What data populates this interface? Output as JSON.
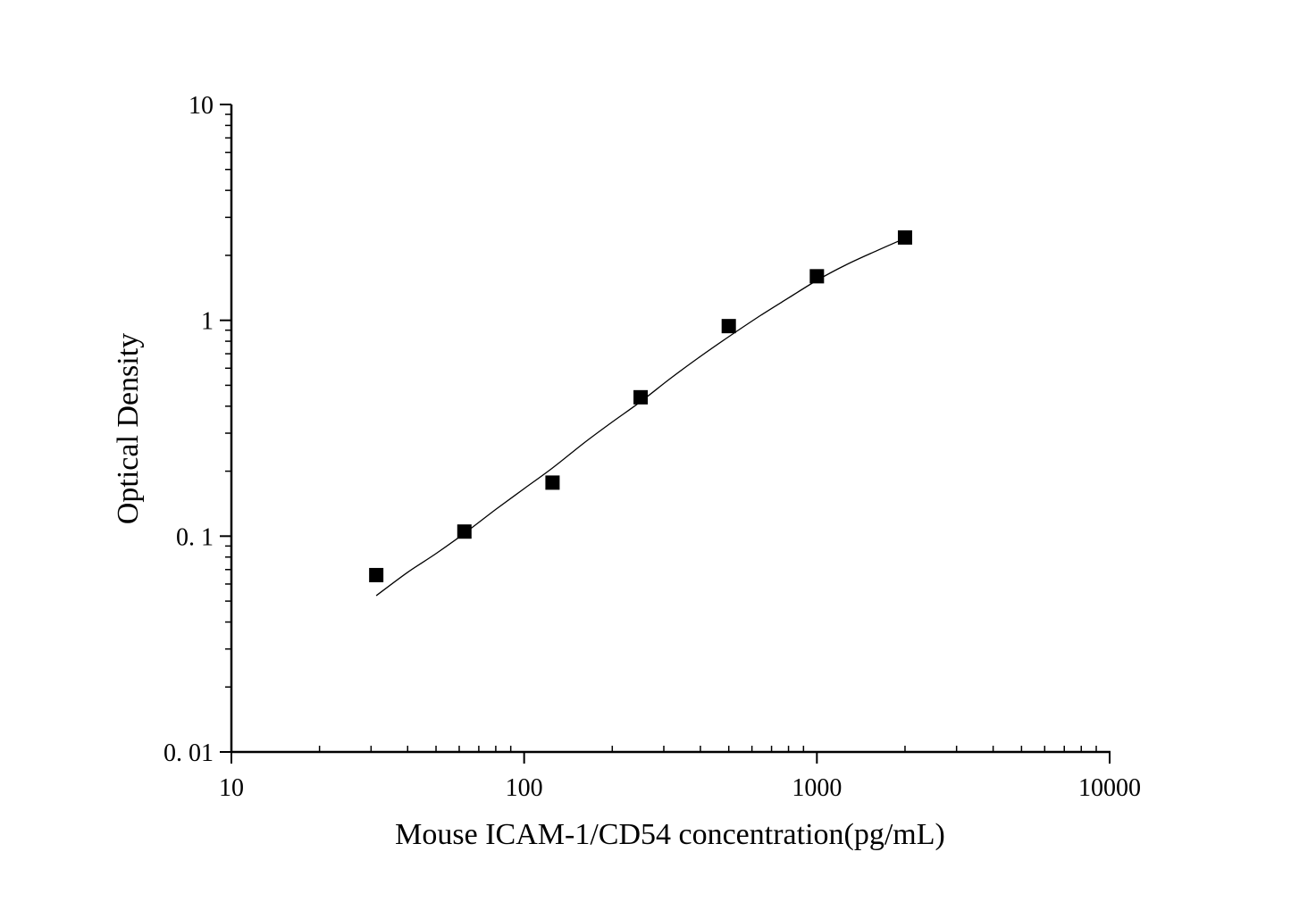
{
  "chart_data": {
    "type": "scatter",
    "title": "",
    "xlabel": "Mouse ICAM-1/CD54  concentration(pg/mL)",
    "ylabel": "Optical Density",
    "xscale": "log",
    "yscale": "log",
    "xlim": [
      10,
      10000
    ],
    "ylim": [
      0.01,
      10
    ],
    "x_ticks": [
      10,
      100,
      1000,
      10000
    ],
    "x_tick_labels": [
      "10",
      "100",
      "1000",
      "10000"
    ],
    "y_ticks": [
      0.01,
      0.1,
      1,
      10
    ],
    "y_tick_labels": [
      "0. 01",
      "0. 1",
      "1",
      "10"
    ],
    "grid": false,
    "legend": "none",
    "marker_color": "#000000",
    "series": [
      {
        "x": [
          31.25,
          62.5,
          125,
          250,
          500,
          1000,
          2000
        ],
        "y": [
          0.066,
          0.105,
          0.177,
          0.44,
          0.94,
          1.6,
          2.42
        ]
      }
    ],
    "fit_curve": {
      "x": [
        31.25,
        40,
        50,
        62.5,
        80,
        100,
        125,
        160,
        200,
        250,
        320,
        400,
        500,
        640,
        800,
        1000,
        1250,
        1600,
        2000
      ],
      "y": [
        0.053,
        0.068,
        0.083,
        0.103,
        0.133,
        0.166,
        0.207,
        0.27,
        0.338,
        0.42,
        0.545,
        0.68,
        0.84,
        1.05,
        1.27,
        1.53,
        1.8,
        2.1,
        2.4
      ]
    }
  }
}
